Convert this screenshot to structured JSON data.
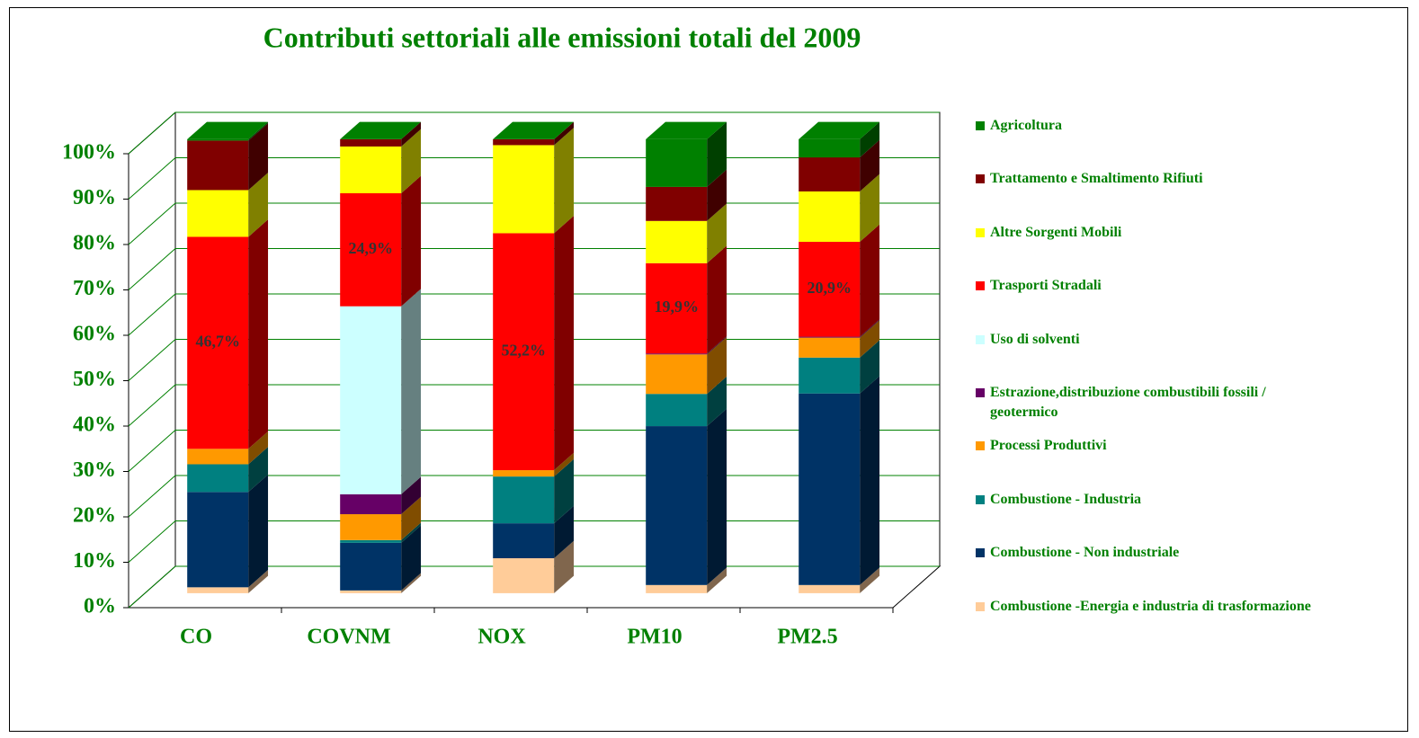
{
  "chart_data": {
    "type": "bar3d_stacked",
    "title": "Contributi settoriali alle emissioni totali del 2009",
    "categories": [
      "CO",
      "COVNM",
      "NOX",
      "PM10",
      "PM2.5"
    ],
    "ylim": [
      0,
      100
    ],
    "yticks": [
      {
        "value": 0,
        "label": "0%"
      },
      {
        "value": 10,
        "label": "10%"
      },
      {
        "value": 20,
        "label": "20%"
      },
      {
        "value": 30,
        "label": "30%"
      },
      {
        "value": 40,
        "label": "40%"
      },
      {
        "value": 50,
        "label": "50%"
      },
      {
        "value": 60,
        "label": "60%"
      },
      {
        "value": 70,
        "label": "70%"
      },
      {
        "value": 80,
        "label": "80%"
      },
      {
        "value": 90,
        "label": "90%"
      },
      {
        "value": 100,
        "label": "100%"
      }
    ],
    "grid": true,
    "series": [
      {
        "name": "Combustione -Energia e industria di trasformazione",
        "color": "#ffcc99",
        "values": [
          1.3,
          0.6,
          7.7,
          1.8,
          1.8
        ]
      },
      {
        "name": "Combustione - Non industriale",
        "color": "#003366",
        "values": [
          21,
          10.5,
          7.7,
          35,
          42.2
        ]
      },
      {
        "name": "Combustione - Industria",
        "color": "#008080",
        "values": [
          6.1,
          0.6,
          10.3,
          7.1,
          7.9
        ]
      },
      {
        "name": "Processi Produttivi",
        "color": "#ff9900",
        "values": [
          3.4,
          5.7,
          1.4,
          8.7,
          4.4
        ]
      },
      {
        "name": "Estrazione,distribuzione combustibili fossili / geotermico",
        "color": "#660066",
        "values": [
          0,
          4.4,
          0,
          0.2,
          0.2
        ]
      },
      {
        "name": "Uso di solventi",
        "color": "#ccffff",
        "values": [
          0,
          41.4,
          0,
          0,
          0
        ]
      },
      {
        "name": "Trasporti Stradali",
        "color": "#ff0000",
        "values": [
          46.7,
          24.9,
          52.2,
          19.9,
          20.9
        ],
        "value_labels": [
          "46,7%",
          "24,9%",
          "52,2%",
          "19,9%",
          "20,9%"
        ]
      },
      {
        "name": "Altre Sorgenti Mobili",
        "color": "#ffff00",
        "values": [
          10.3,
          10.3,
          19.4,
          9.3,
          11.1
        ]
      },
      {
        "name": "Trattamento e Smaltimento Rifiuti",
        "color": "#800000",
        "values": [
          10.9,
          1.6,
          1.3,
          7.5,
          7.5
        ]
      },
      {
        "name": "Agricoltura",
        "color": "#008000",
        "values": [
          0.3,
          0,
          0,
          10.5,
          4.0
        ]
      }
    ]
  }
}
